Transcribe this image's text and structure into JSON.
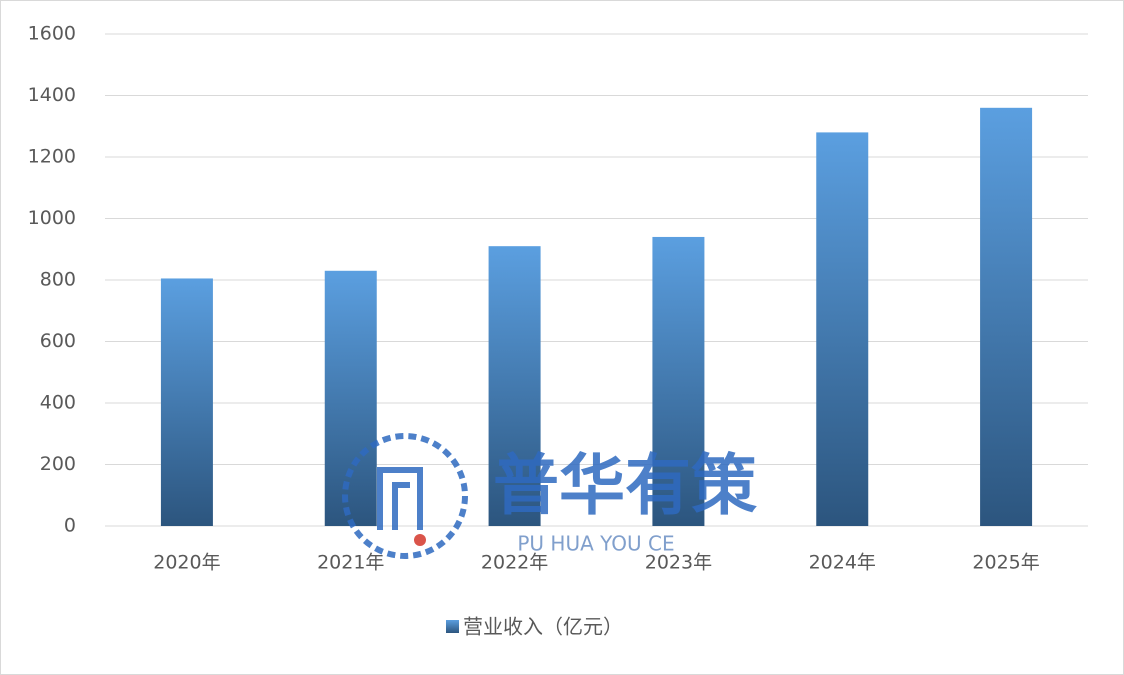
{
  "chart_data": {
    "type": "bar",
    "categories": [
      "2020年",
      "2021年",
      "2022年",
      "2023年",
      "2024年",
      "2025年"
    ],
    "series": [
      {
        "name": "营业收入（亿元）",
        "color": "#5b9fe0",
        "values": [
          805,
          830,
          910,
          940,
          1280,
          1360
        ]
      }
    ],
    "ylim": [
      0,
      1600
    ],
    "yticks": [
      0,
      200,
      400,
      600,
      800,
      1000,
      1200,
      1400,
      1600
    ],
    "grid": true,
    "legend": "bottom",
    "watermark": {
      "title": "普华有策",
      "subtitle": "PU HUA YOU CE"
    }
  }
}
